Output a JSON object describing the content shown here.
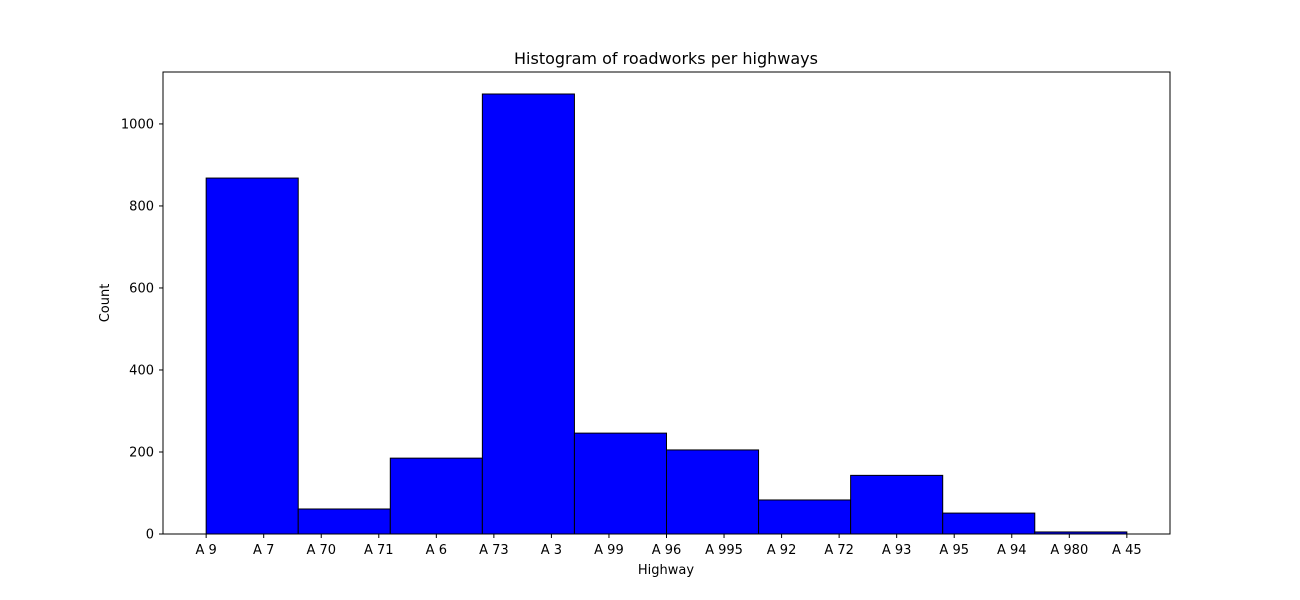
{
  "chart_data": {
    "type": "bar",
    "title": "Histogram of roadworks per highways",
    "xlabel": "Highway",
    "ylabel": "Count",
    "x_tick_labels": [
      "A 9",
      "A 7",
      "A 70",
      "A 71",
      "A 6",
      "A 73",
      "A 3",
      "A 99",
      "A 96",
      "A 995",
      "A 92",
      "A 72",
      "A 93",
      "A 95",
      "A 94",
      "A 980",
      "A 45"
    ],
    "x_range": [
      -0.75,
      16.75
    ],
    "bins": [
      {
        "start": 0.0,
        "end": 1.6,
        "value": 868
      },
      {
        "start": 1.6,
        "end": 3.2,
        "value": 61
      },
      {
        "start": 3.2,
        "end": 4.8,
        "value": 185
      },
      {
        "start": 4.8,
        "end": 6.4,
        "value": 1073
      },
      {
        "start": 6.4,
        "end": 8.0,
        "value": 246
      },
      {
        "start": 8.0,
        "end": 9.6,
        "value": 205
      },
      {
        "start": 9.6,
        "end": 11.2,
        "value": 83
      },
      {
        "start": 11.2,
        "end": 12.8,
        "value": 143
      },
      {
        "start": 12.8,
        "end": 14.4,
        "value": 51
      },
      {
        "start": 14.4,
        "end": 16.0,
        "value": 5
      }
    ],
    "ylim": [
      0,
      1126.65
    ],
    "y_ticks": [
      0,
      200,
      400,
      600,
      800,
      1000
    ],
    "bar_color": "#0000ff",
    "edge_color": "#000000",
    "grid": false,
    "legend": false
  }
}
